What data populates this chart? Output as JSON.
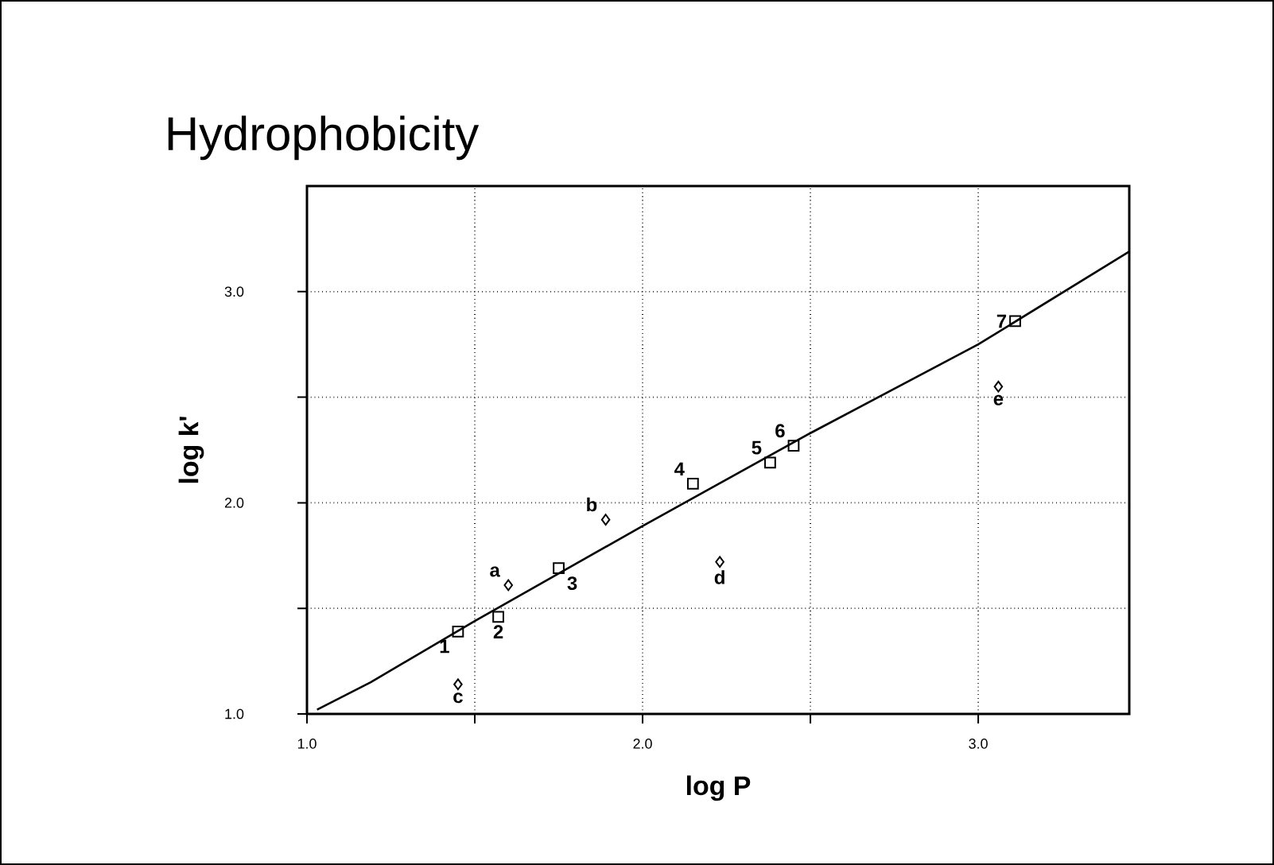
{
  "chart_data": {
    "type": "scatter",
    "title": "Hydrophobicity",
    "xlabel": "log P",
    "ylabel": "log k'",
    "xlim": [
      1.0,
      3.45
    ],
    "ylim": [
      1.0,
      3.5
    ],
    "xticks": [
      {
        "value": 1.0,
        "label": "1.0"
      },
      {
        "value": 1.5,
        "label": null
      },
      {
        "value": 2.0,
        "label": "2.0"
      },
      {
        "value": 2.5,
        "label": null
      },
      {
        "value": 3.0,
        "label": "3.0"
      }
    ],
    "yticks": [
      {
        "value": 1.0,
        "label": "1.0"
      },
      {
        "value": 1.5,
        "label": null
      },
      {
        "value": 2.0,
        "label": "2.0"
      },
      {
        "value": 2.5,
        "label": null
      },
      {
        "value": 3.0,
        "label": "3.0"
      }
    ],
    "grid": true,
    "series": [
      {
        "marker": "square",
        "color": "#000000",
        "x": [
          1.45,
          1.57,
          1.75,
          2.15,
          2.38,
          2.45,
          3.11
        ],
        "values": [
          1.39,
          1.46,
          1.69,
          2.09,
          2.19,
          2.27,
          2.86
        ]
      },
      {
        "marker": "diamond",
        "color": "#000000",
        "x": [
          1.6,
          1.89,
          1.45,
          2.23,
          3.06
        ],
        "values": [
          1.61,
          1.92,
          1.14,
          1.72,
          2.55
        ]
      },
      {
        "type": "line",
        "marker": "none",
        "line_style": "solid",
        "color": "#000000",
        "x": [
          1.03,
          1.19,
          1.5,
          2.0,
          2.5,
          3.0,
          3.45
        ],
        "values": [
          1.02,
          1.15,
          1.44,
          1.89,
          2.33,
          2.75,
          3.19
        ]
      }
    ],
    "annotations": [
      {
        "text": "1",
        "x": 1.45,
        "y": 1.39
      },
      {
        "text": "2",
        "x": 1.57,
        "y": 1.46
      },
      {
        "text": "3",
        "x": 1.75,
        "y": 1.69
      },
      {
        "text": "4",
        "x": 2.15,
        "y": 2.09
      },
      {
        "text": "5",
        "x": 2.38,
        "y": 2.19
      },
      {
        "text": "6",
        "x": 2.45,
        "y": 2.27
      },
      {
        "text": "7",
        "x": 3.11,
        "y": 2.86
      },
      {
        "text": "a",
        "x": 1.6,
        "y": 1.61
      },
      {
        "text": "b",
        "x": 1.89,
        "y": 1.92
      },
      {
        "text": "c",
        "x": 1.45,
        "y": 1.14
      },
      {
        "text": "d",
        "x": 2.23,
        "y": 1.72
      },
      {
        "text": "e",
        "x": 3.06,
        "y": 2.55
      }
    ]
  }
}
